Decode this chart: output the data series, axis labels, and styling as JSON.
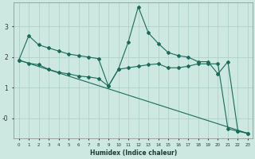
{
  "xlabel": "Humidex (Indice chaleur)",
  "ylabel": "",
  "background_color": "#cce8e0",
  "grid_color": "#aacec6",
  "line_color": "#1a6b5a",
  "xlim": [
    -0.5,
    23.5
  ],
  "ylim": [
    -0.65,
    3.8
  ],
  "yticks": [
    0,
    1,
    2,
    3
  ],
  "ytick_labels": [
    "-0",
    "1",
    "2",
    "3"
  ],
  "xticks": [
    0,
    1,
    2,
    3,
    4,
    5,
    6,
    7,
    8,
    9,
    10,
    11,
    12,
    13,
    14,
    15,
    16,
    17,
    18,
    19,
    20,
    21,
    22,
    23
  ],
  "line1_x": [
    0,
    1,
    2,
    3,
    4,
    5,
    6,
    7,
    8,
    9,
    10,
    11,
    12,
    13,
    14,
    15,
    16,
    17,
    18,
    19,
    20,
    21,
    22,
    23
  ],
  "line1_y": [
    1.9,
    2.7,
    2.4,
    2.3,
    2.2,
    2.1,
    2.05,
    2.0,
    1.95,
    1.05,
    1.6,
    2.5,
    3.65,
    2.8,
    2.45,
    2.15,
    2.05,
    2.0,
    1.85,
    1.85,
    1.45,
    1.85,
    -0.42,
    -0.5
  ],
  "line2_x": [
    0,
    1,
    2,
    3,
    4,
    5,
    6,
    7,
    8,
    9,
    10,
    11,
    12,
    13,
    14,
    15,
    16,
    17,
    18,
    19,
    20,
    21,
    22,
    23
  ],
  "line2_y": [
    1.9,
    1.8,
    1.75,
    1.6,
    1.5,
    1.45,
    1.38,
    1.35,
    1.3,
    1.05,
    1.6,
    1.65,
    1.7,
    1.75,
    1.78,
    1.65,
    1.65,
    1.7,
    1.78,
    1.78,
    1.78,
    -0.35,
    -0.43,
    -0.5
  ],
  "line3_x": [
    0,
    23
  ],
  "line3_y": [
    1.9,
    -0.5
  ]
}
